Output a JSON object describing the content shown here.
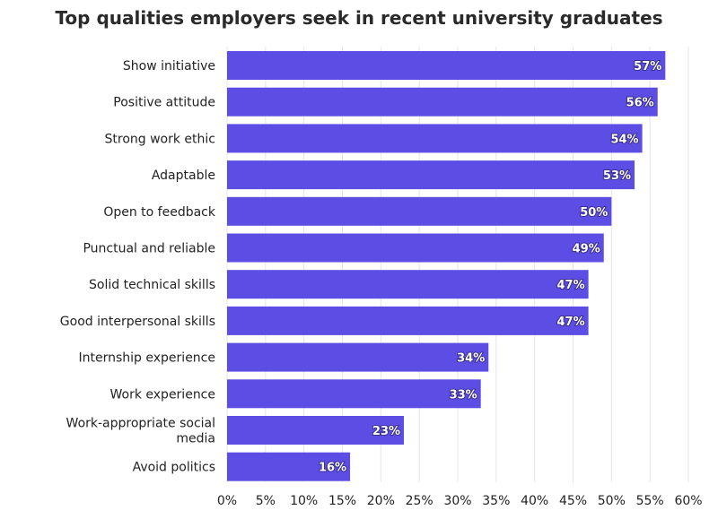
{
  "chart_data": {
    "type": "bar",
    "orientation": "horizontal",
    "title": "Top qualities employers seek in recent university graduates",
    "categories": [
      "Show initiative",
      "Positive attitude",
      "Strong work ethic",
      "Adaptable",
      "Open to feedback",
      "Punctual and reliable",
      "Solid technical skills",
      "Good interpersonal skills",
      "Internship experience",
      "Work experience",
      "Work-appropriate social media",
      "Avoid politics"
    ],
    "category_lines": [
      [
        "Show initiative"
      ],
      [
        "Positive attitude"
      ],
      [
        "Strong work ethic"
      ],
      [
        "Adaptable"
      ],
      [
        "Open to feedback"
      ],
      [
        "Punctual and reliable"
      ],
      [
        "Solid technical skills"
      ],
      [
        "Good interpersonal skills"
      ],
      [
        "Internship experience"
      ],
      [
        "Work experience"
      ],
      [
        "Work-appropriate social",
        "media"
      ],
      [
        "Avoid politics"
      ]
    ],
    "values": [
      57,
      56,
      54,
      53,
      50,
      49,
      47,
      47,
      34,
      33,
      23,
      16
    ],
    "value_labels": [
      "57%",
      "56%",
      "54%",
      "53%",
      "50%",
      "49%",
      "47%",
      "47%",
      "34%",
      "33%",
      "23%",
      "16%"
    ],
    "xlim": [
      0,
      60
    ],
    "x_ticks": [
      0,
      5,
      10,
      15,
      20,
      25,
      30,
      35,
      40,
      45,
      50,
      55,
      60
    ],
    "x_tick_labels": [
      "0%",
      "5%",
      "10%",
      "15%",
      "20%",
      "25%",
      "30%",
      "35%",
      "40%",
      "45%",
      "50%",
      "55%",
      "60%"
    ],
    "xlabel": "",
    "ylabel": "",
    "grid": true,
    "legend": "none",
    "bar_color": "#5c4ee5"
  }
}
